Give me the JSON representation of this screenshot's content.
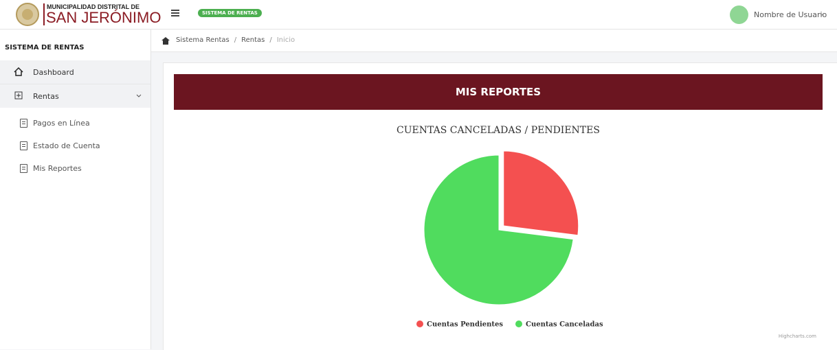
{
  "header": {
    "logo_line1": "MUNICIPALIDAD DISTRITAL DE",
    "logo_line2": "SAN JERÓNIMO",
    "badge": "SISTEMA DE RENTAS",
    "user": "Nombre de Usuario"
  },
  "sidebar": {
    "title": "SISTEMA DE RENTAS",
    "items": [
      "Dashboard",
      "Rentas"
    ],
    "subitems": [
      "Pagos en Línea",
      "Estado de Cuenta",
      "Mis Reportes"
    ]
  },
  "breadcrumb": {
    "items": [
      "Sistema Rentas",
      "Rentas",
      "Inicio"
    ],
    "separator": "/"
  },
  "banner": "MIS REPORTES",
  "chart_data": {
    "type": "pie",
    "title": "CUENTAS CANCELADAS / PENDIENTES",
    "categories": [
      "Cuentas Pendientes",
      "Cuentas Canceladas"
    ],
    "values": [
      27,
      73
    ],
    "colors": [
      "#f45050",
      "#50dc5e"
    ],
    "sliced": [
      true,
      false
    ],
    "legend": "bottom",
    "credit": "Highcharts.com"
  }
}
